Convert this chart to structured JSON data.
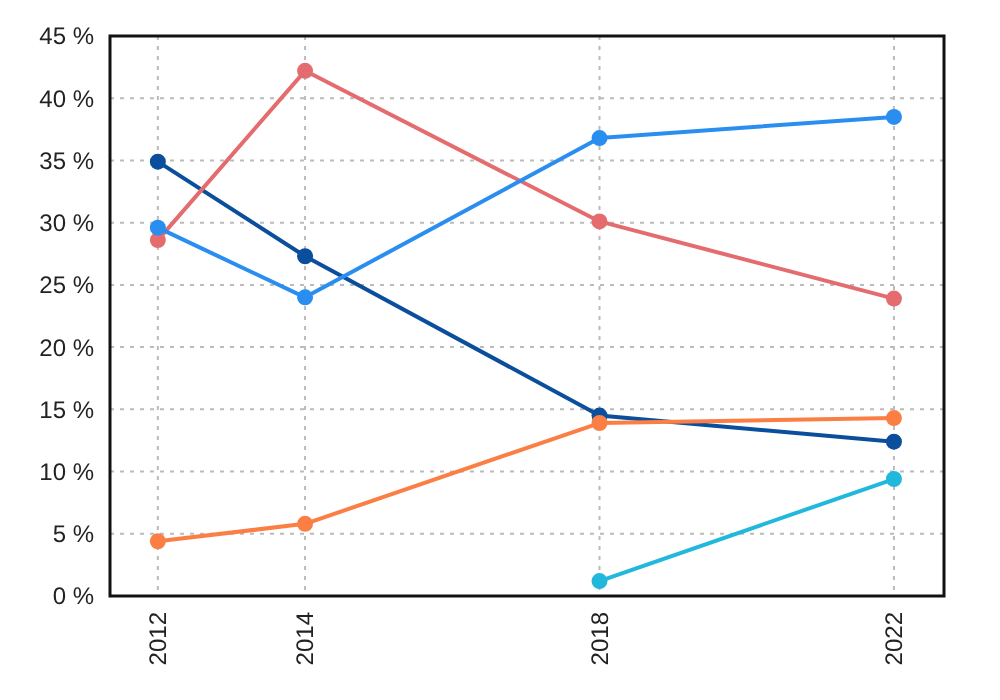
{
  "chart_data": {
    "type": "line",
    "x": [
      2012,
      2014,
      2018,
      2022
    ],
    "series": [
      {
        "color": "#0b4f9c",
        "values": [
          34.9,
          27.3,
          14.5,
          12.4
        ]
      },
      {
        "color": "#e46c6f",
        "values": [
          28.6,
          42.2,
          30.1,
          23.9
        ]
      },
      {
        "color": "#2a8ef0",
        "values": [
          29.6,
          24.0,
          36.8,
          38.5
        ]
      },
      {
        "color": "#fb7f45",
        "values": [
          4.4,
          5.8,
          13.9,
          14.3
        ]
      },
      {
        "color": "#22b8dc",
        "values": [
          null,
          null,
          1.2,
          9.4
        ]
      }
    ],
    "xlim": [
      2011.35,
      2022.68
    ],
    "xticks": [
      2012,
      2014,
      2018,
      2022
    ],
    "ylim": [
      0,
      45
    ],
    "yticks": [
      {
        "value": 0,
        "label": "0 %"
      },
      {
        "value": 5,
        "label": "5 %"
      },
      {
        "value": 10,
        "label": "10 %"
      },
      {
        "value": 15,
        "label": "15 %"
      },
      {
        "value": 20,
        "label": "20 %"
      },
      {
        "value": 25,
        "label": "25 %"
      },
      {
        "value": 30,
        "label": "30 %"
      },
      {
        "value": 35,
        "label": "35 %"
      },
      {
        "value": 40,
        "label": "40 %"
      },
      {
        "value": 45,
        "label": "45 %"
      }
    ],
    "grid": true,
    "marker": "circle",
    "line_style": "solid"
  }
}
